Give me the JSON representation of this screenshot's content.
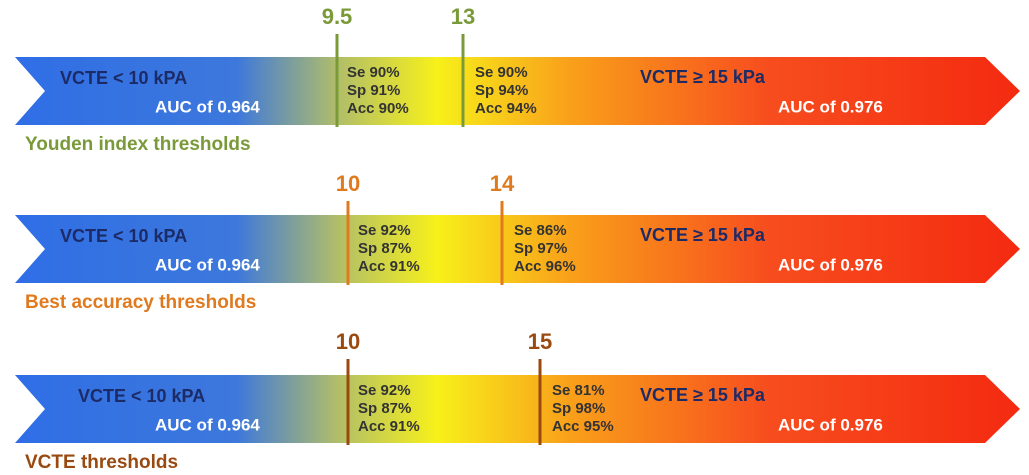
{
  "bands": [
    {
      "thresholds": [
        9.5,
        13
      ],
      "left": {
        "label": "VCTE < 10 kPA",
        "auc": "AUC of 0.964"
      },
      "middle": [
        "Se 90%",
        "Sp 91%",
        "Acc 90%"
      ],
      "upper": [
        "Se 90%",
        "Sp 94%",
        "Acc 94%"
      ],
      "right": {
        "label": "VCTE ≥ 15 kPa",
        "auc": "AUC of 0.976"
      },
      "caption": "Youden index thresholds"
    },
    {
      "thresholds": [
        10,
        14
      ],
      "left": {
        "label": "VCTE < 10 kPA",
        "auc": "AUC of 0.964"
      },
      "middle": [
        "Se 92%",
        "Sp 87%",
        "Acc 91%"
      ],
      "upper": [
        "Se 86%",
        "Sp 97%",
        "Acc 96%"
      ],
      "right": {
        "label": "VCTE ≥ 15 kPa",
        "auc": "AUC of 0.976"
      },
      "caption": "Best accuracy thresholds"
    },
    {
      "thresholds": [
        10,
        15
      ],
      "left": {
        "label": "VCTE < 10 kPA",
        "auc": "AUC of 0.964"
      },
      "middle": [
        "Se 92%",
        "Sp 87%",
        "Acc 91%"
      ],
      "upper": [
        "Se 81%",
        "Sp 98%",
        "Acc 95%"
      ],
      "right": {
        "label": "VCTE ≥ 15 kPa",
        "auc": "AUC of 0.976"
      },
      "caption": "VCTE thresholds"
    }
  ]
}
